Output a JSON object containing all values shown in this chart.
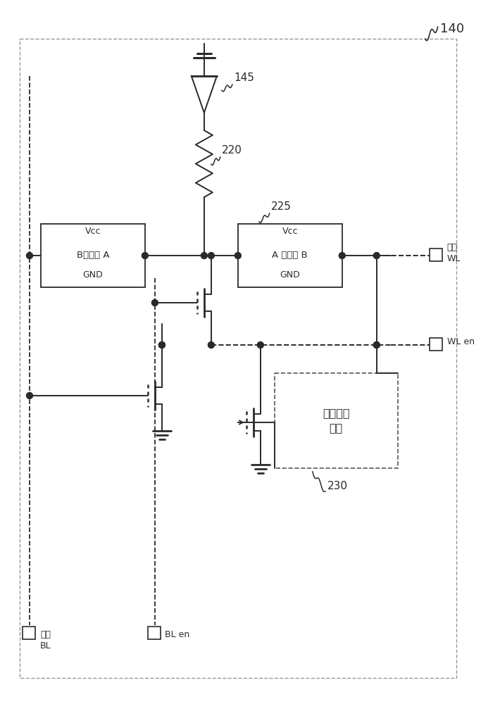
{
  "bg_color": "#ffffff",
  "lc": "#2a2a2a",
  "label_140": "140",
  "label_145": "145",
  "label_220": "220",
  "label_225": "225",
  "label_230": "230",
  "label_vcc": "Vcc",
  "label_gnd": "GND",
  "label_bufferA": "B缓冲器 A",
  "label_bufferB": "A 缓冲器 B",
  "label_feedback": "反馈抑制\n电路",
  "label_WL": "共用\nWL",
  "label_WLen": "WL en",
  "label_BL": "共用\nBL",
  "label_BLen": "BL en"
}
